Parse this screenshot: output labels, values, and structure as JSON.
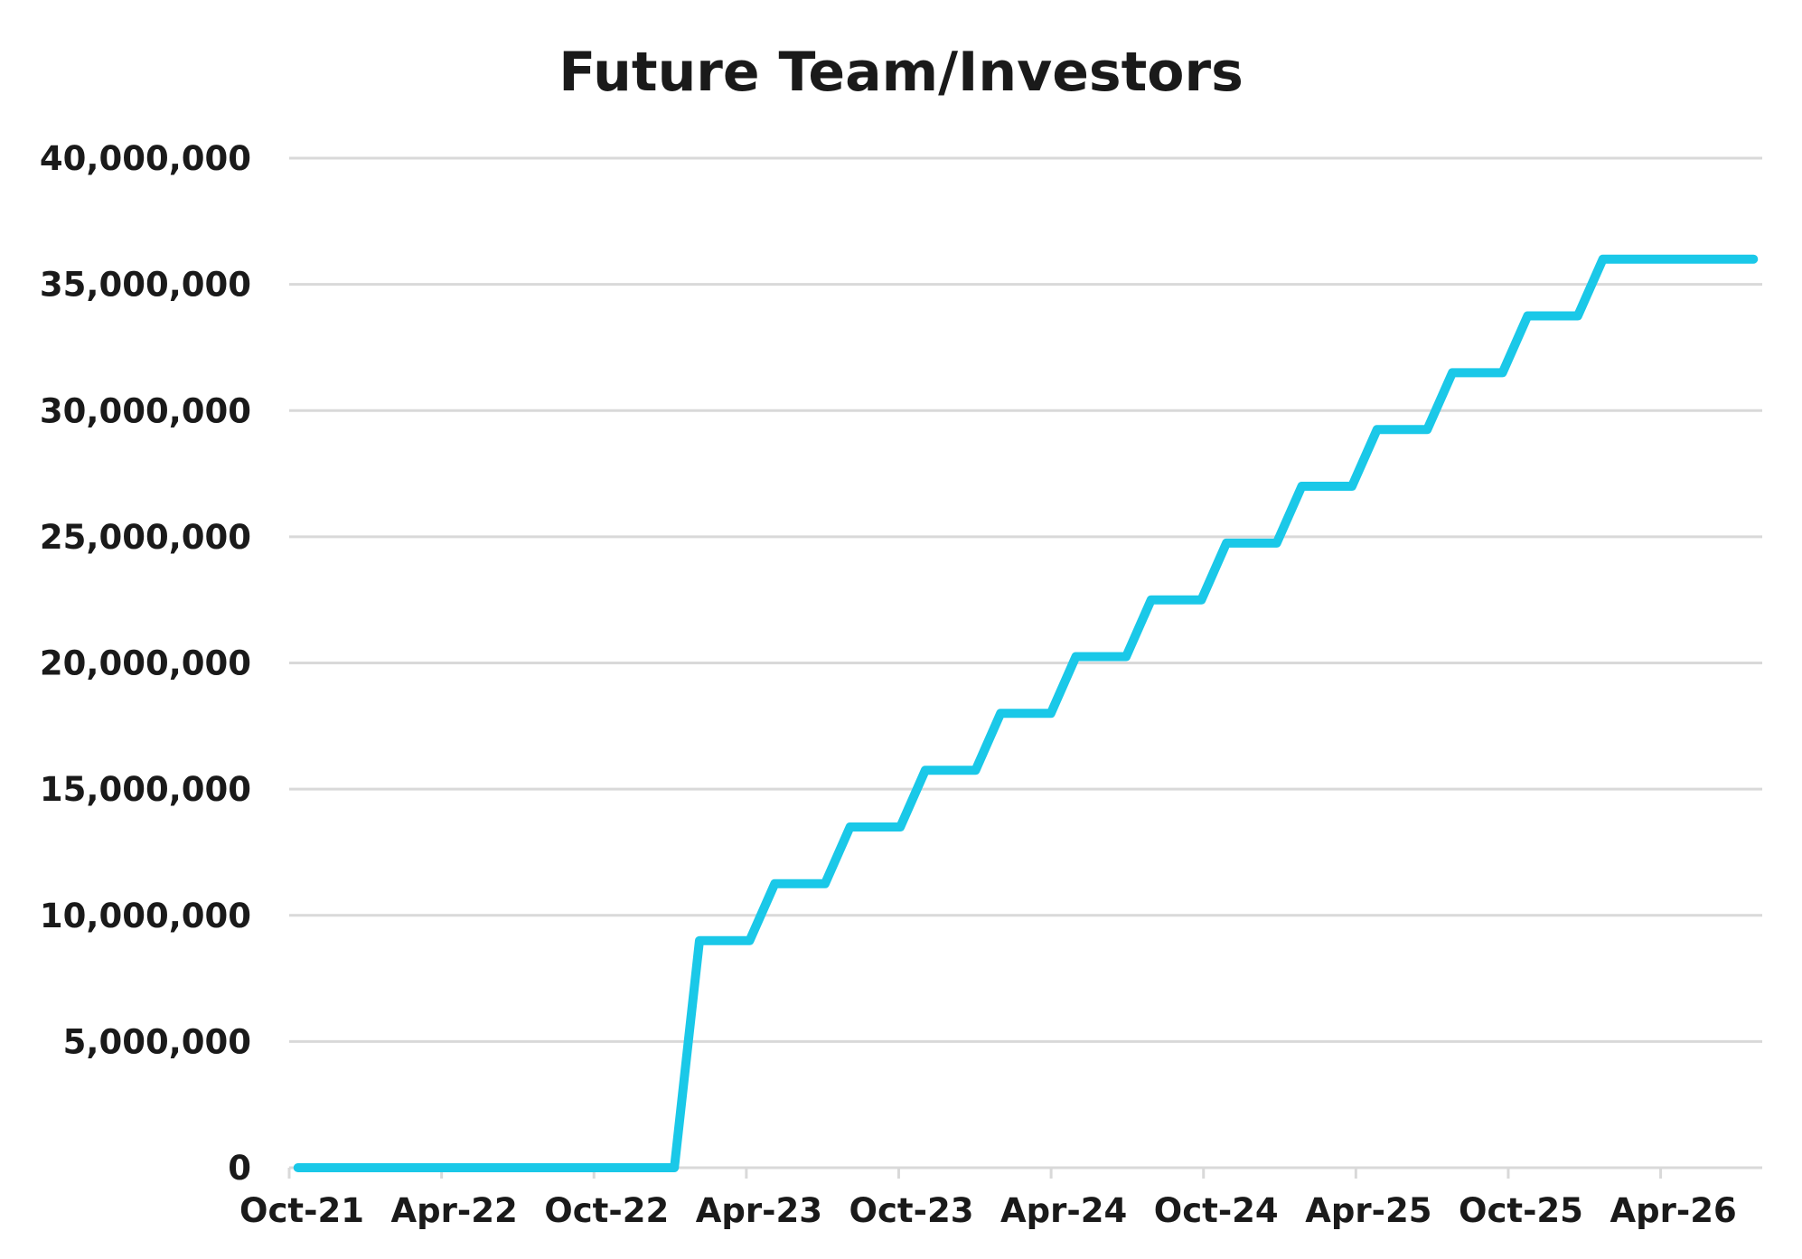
{
  "chart_data": {
    "type": "line",
    "title": "Future Team/Investors",
    "xlabel": "",
    "ylabel": "",
    "legend": "none",
    "grid": true,
    "ylim": [
      0,
      40000000
    ],
    "xlim": [
      "2021-10",
      "2026-08"
    ],
    "y_ticks": [
      0,
      5000000,
      10000000,
      15000000,
      20000000,
      25000000,
      30000000,
      35000000,
      40000000
    ],
    "y_tick_labels": [
      "0",
      "5,000,000",
      "10,000,000",
      "15,000,000",
      "20,000,000",
      "25,000,000",
      "30,000,000",
      "35,000,000",
      "40,000,000"
    ],
    "x_ticks": [
      "2021-10",
      "2022-04",
      "2022-10",
      "2023-04",
      "2023-10",
      "2024-04",
      "2024-10",
      "2025-04",
      "2025-10",
      "2026-04"
    ],
    "x_tick_labels": [
      "Oct-21",
      "Apr-22",
      "Oct-22",
      "Apr-23",
      "Oct-23",
      "Apr-24",
      "Oct-24",
      "Apr-25",
      "Oct-25",
      "Apr-26"
    ],
    "colors": {
      "line": "#1ac8e8",
      "grid": "#d9d9d9",
      "text": "#1a1a1a"
    },
    "series": [
      {
        "x": [
          "2021-10",
          "2021-11",
          "2021-12",
          "2022-01",
          "2022-02",
          "2022-03",
          "2022-04",
          "2022-05",
          "2022-06",
          "2022-07",
          "2022-08",
          "2022-09",
          "2022-10",
          "2022-11",
          "2022-12",
          "2023-01",
          "2023-02",
          "2023-03",
          "2023-04",
          "2023-05",
          "2023-06",
          "2023-07",
          "2023-08",
          "2023-09",
          "2023-10",
          "2023-11",
          "2023-12",
          "2024-01",
          "2024-02",
          "2024-03",
          "2024-04",
          "2024-05",
          "2024-06",
          "2024-07",
          "2024-08",
          "2024-09",
          "2024-10",
          "2024-11",
          "2024-12",
          "2025-01",
          "2025-02",
          "2025-03",
          "2025-04",
          "2025-05",
          "2025-06",
          "2025-07",
          "2025-08",
          "2025-09",
          "2025-10",
          "2025-11",
          "2025-12",
          "2026-01",
          "2026-02",
          "2026-03",
          "2026-04",
          "2026-05",
          "2026-06",
          "2026-07",
          "2026-08"
        ],
        "values": [
          0,
          0,
          0,
          0,
          0,
          0,
          0,
          0,
          0,
          0,
          0,
          0,
          0,
          0,
          0,
          0,
          9000000,
          9000000,
          9000000,
          11250000,
          11250000,
          11250000,
          13500000,
          13500000,
          13500000,
          15750000,
          15750000,
          15750000,
          18000000,
          18000000,
          18000000,
          20250000,
          20250000,
          20250000,
          22500000,
          22500000,
          22500000,
          24750000,
          24750000,
          24750000,
          27000000,
          27000000,
          27000000,
          29250000,
          29250000,
          29250000,
          31500000,
          31500000,
          31500000,
          33750000,
          33750000,
          33750000,
          36000000,
          36000000,
          36000000,
          36000000,
          36000000,
          36000000,
          36000000
        ]
      }
    ]
  }
}
